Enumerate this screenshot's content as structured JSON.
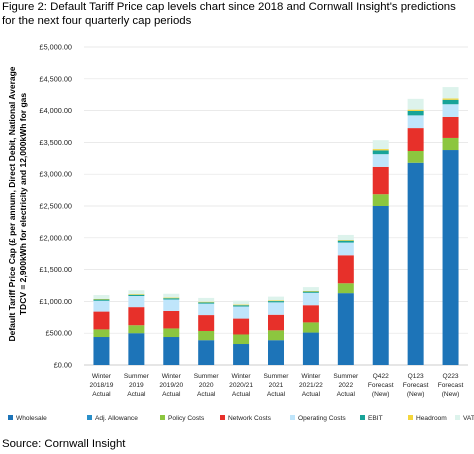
{
  "figure_title": "Figure 2: Default Tariff Price cap levels chart since 2018 and Cornwall Insight's predictions for the next four quarterly cap periods",
  "source": "Source: Cornwall Insight",
  "chart_data": {
    "type": "bar",
    "stacked": true,
    "title": "Figure 2: Default Tariff Price cap levels chart since 2018 and Cornwall Insight's predictions for the next four quarterly cap periods",
    "ylabel": "Default Tariff Price Cap (£ per annum, Direct Debit, National Average TDCV = 2,900kWh for electricity and 12,000kWh for gas",
    "xlabel": "",
    "ylim": [
      0,
      5000
    ],
    "yticks": [
      "£0.00",
      "£500.00",
      "£1,000.00",
      "£1,500.00",
      "£2,000.00",
      "£2,500.00",
      "£3,000.00",
      "£3,500.00",
      "£4,000.00",
      "£4,500.00",
      "£5,000.00"
    ],
    "categories": [
      [
        "Winter",
        "2018/19",
        "Actual"
      ],
      [
        "Summer",
        "2019",
        "Actual"
      ],
      [
        "Winter",
        "2019/20",
        "Actual"
      ],
      [
        "Summer",
        "2020",
        "Actual"
      ],
      [
        "Winter",
        "2020/21",
        "Actual"
      ],
      [
        "Summer",
        "2021",
        "Actual"
      ],
      [
        "Winter",
        "2021/22",
        "Actual"
      ],
      [
        "Summer",
        "2022",
        "Actual"
      ],
      [
        "Q422",
        "Forecast",
        "(New)"
      ],
      [
        "Q123",
        "Forecast",
        "(New)"
      ],
      [
        "Q223",
        "Forecast",
        "(New)"
      ]
    ],
    "series": [
      {
        "name": "Wholesale",
        "color": "#1d74b8",
        "values": [
          440,
          500,
          440,
          390,
          330,
          390,
          510,
          1130,
          2500,
          3180,
          3380
        ]
      },
      {
        "name": "Adj. Allowance",
        "color": "#2a8fc9",
        "values": [
          0,
          0,
          0,
          0,
          0,
          0,
          0,
          0,
          0,
          0,
          0
        ]
      },
      {
        "name": "Policy Costs",
        "color": "#8cc63f",
        "values": [
          120,
          125,
          135,
          145,
          150,
          155,
          160,
          155,
          185,
          185,
          190
        ]
      },
      {
        "name": "Network Costs",
        "color": "#e7302a",
        "values": [
          280,
          285,
          275,
          250,
          250,
          245,
          270,
          440,
          430,
          360,
          330
        ]
      },
      {
        "name": "Operating Costs",
        "color": "#bfe5fb",
        "values": [
          170,
          175,
          180,
          180,
          190,
          195,
          195,
          200,
          200,
          200,
          200
        ]
      },
      {
        "name": "EBIT",
        "color": "#17a398",
        "values": [
          20,
          20,
          20,
          20,
          20,
          20,
          20,
          30,
          60,
          70,
          70
        ]
      },
      {
        "name": "Headroom",
        "color": "#f4d63b",
        "values": [
          10,
          10,
          10,
          10,
          10,
          10,
          10,
          10,
          20,
          20,
          20
        ]
      },
      {
        "name": "VAT",
        "color": "#ddf3ec",
        "values": [
          60,
          60,
          60,
          60,
          60,
          60,
          60,
          80,
          140,
          170,
          180
        ]
      }
    ],
    "gridlines": true,
    "legend_position": "bottom"
  }
}
